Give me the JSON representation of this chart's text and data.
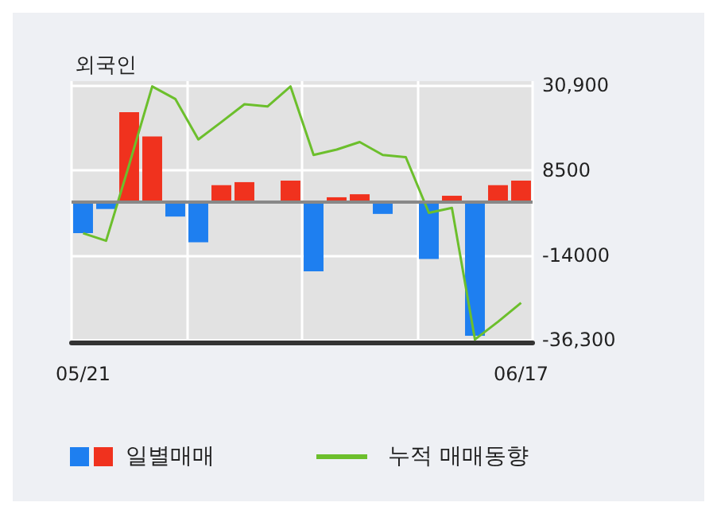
{
  "chart_data": {
    "type": "bar",
    "title": "외국인",
    "categories": [
      "05/21",
      null,
      null,
      null,
      null,
      null,
      null,
      null,
      null,
      null,
      null,
      null,
      null,
      null,
      null,
      null,
      null,
      null,
      null,
      "06/17"
    ],
    "series": [
      {
        "name": "일별매매",
        "values": [
          -8200,
          -1800,
          23800,
          17400,
          -3800,
          -10600,
          4500,
          5300,
          null,
          5700,
          -18300,
          1300,
          2100,
          -3100,
          null,
          -15000,
          1700,
          -35300,
          4500,
          5700
        ],
        "colors": [
          "#1e7ff0",
          "#1e7ff0",
          "#f0321e",
          "#f0321e",
          "#1e7ff0",
          "#1e7ff0",
          "#f0321e",
          "#f0321e",
          "#f0321e",
          "#f0321e",
          "#1e7ff0",
          "#f0321e",
          "#f0321e",
          "#1e7ff0",
          "#1e7ff0",
          "#1e7ff0",
          "#f0321e",
          "#1e7ff0",
          "#f0321e",
          "#f0321e"
        ]
      },
      {
        "name": "누적 매매동향",
        "type": "line",
        "color": "#6cbf2c",
        "values": [
          -8200,
          -10200,
          9900,
          30600,
          27300,
          16600,
          21200,
          25900,
          25300,
          30600,
          12500,
          13900,
          15900,
          12500,
          11900,
          -2800,
          -1500,
          -36300,
          -31600,
          -26600
        ]
      }
    ],
    "ylim": [
      -37000,
      32000
    ],
    "yticks": [
      {
        "value": 30900,
        "label": "30,900"
      },
      8500,
      -14000,
      {
        "value": -36300,
        "label": "-36,300"
      }
    ],
    "ref_lines": [
      {
        "axis": "y",
        "value": 0,
        "color": "#888888"
      }
    ],
    "grid": true,
    "legend": "bottom",
    "marker": "none",
    "line_style": "solid"
  }
}
